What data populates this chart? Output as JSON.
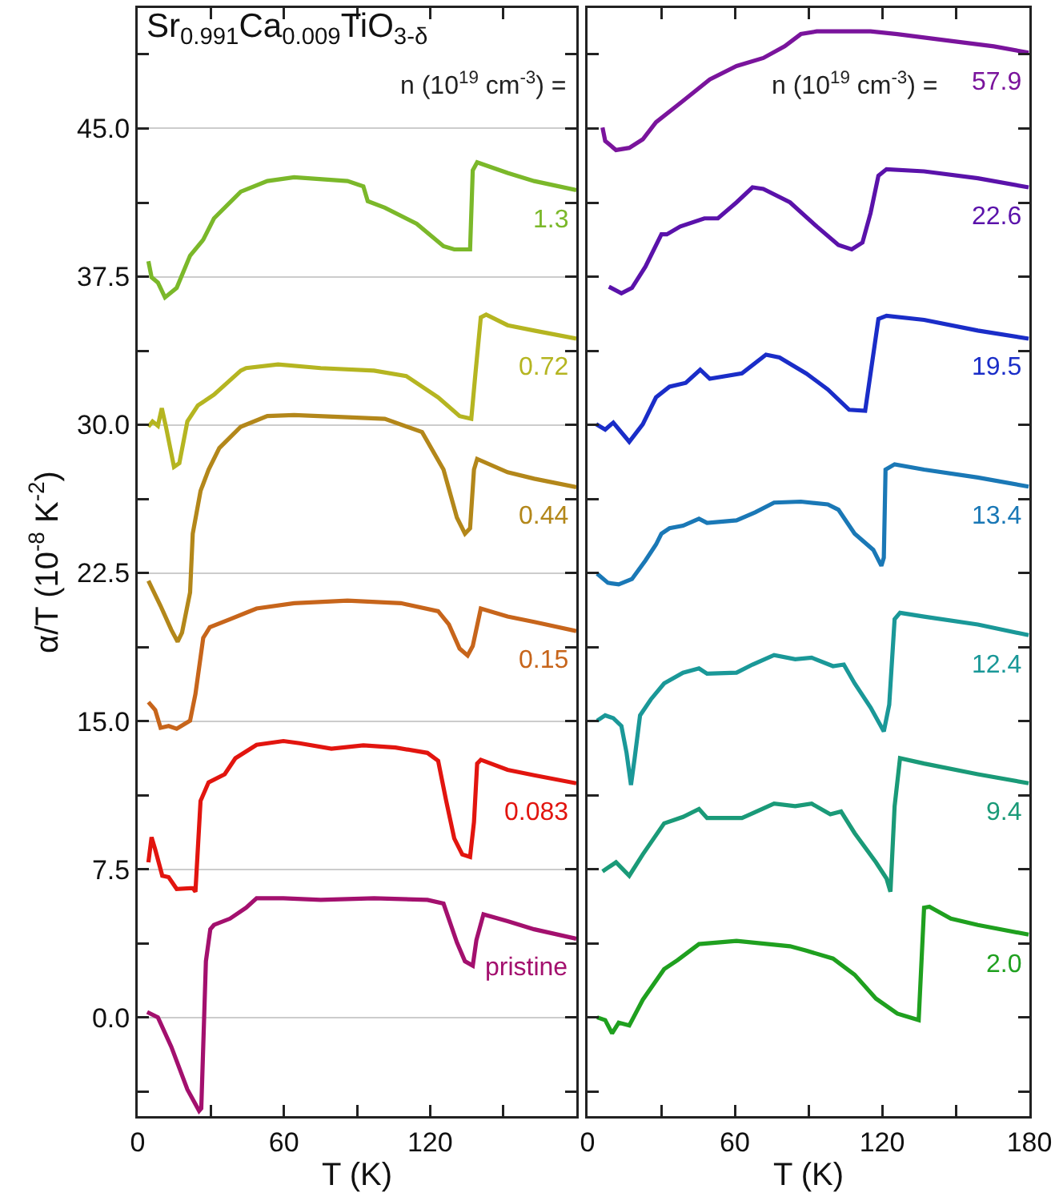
{
  "chart_data": [
    {
      "type": "line",
      "title": "Sr$_{0.991}$Ca$_{0.009}$TiO$_{3-δ}$",
      "xlabel": "T (K)",
      "ylabel": "α/T (10$^{-8}$ K$^{-2}$)",
      "annotations": [
        "n (10$^{19}$ cm$^{-3}$) ="
      ],
      "xlim": [
        0,
        180
      ],
      "ylim": [
        -5,
        51.1
      ],
      "xticks": [
        0,
        {
          "value": 30,
          "label": null
        },
        60,
        {
          "value": 90,
          "label": null
        },
        120,
        {
          "value": 150,
          "label": null
        },
        {
          "value": 180,
          "label": null
        }
      ],
      "yticks": [
        {
          "value": -3.75,
          "label": null
        },
        {
          "value": 0,
          "label": "0.0"
        },
        {
          "value": 3.75,
          "label": null
        },
        {
          "value": 7.5,
          "label": "7.5"
        },
        {
          "value": 11.25,
          "label": null
        },
        {
          "value": 15,
          "label": "15.0"
        },
        {
          "value": 18.75,
          "label": null
        },
        {
          "value": 22.5,
          "label": "22.5"
        },
        {
          "value": 26.25,
          "label": null
        },
        {
          "value": 30,
          "label": "30.0"
        },
        {
          "value": 33.75,
          "label": null
        },
        {
          "value": 37.5,
          "label": "37.5"
        },
        {
          "value": 41.25,
          "label": null
        },
        {
          "value": 45,
          "label": "45.0"
        },
        {
          "value": 48.75,
          "label": null
        }
      ],
      "grid": "y",
      "series": [
        {
          "name": "pristine",
          "color": "#a3106e",
          "x": [
            3.9,
            8.3,
            13.8,
            20.4,
            25.2,
            26.1,
            28,
            29.8,
            31.3,
            37.9,
            44.5,
            48.8,
            59.8,
            75.1,
            97,
            118.9,
            125.5,
            131,
            134.3,
            137.5,
            139,
            141.9,
            151.8,
            162.7,
            180
          ],
          "values": [
            0.27,
            0,
            -1.49,
            -3.65,
            -4.73,
            -4.6,
            2.84,
            4.46,
            4.68,
            5.0,
            5.55,
            6.03,
            6.03,
            5.95,
            6.03,
            5.95,
            5.76,
            3.79,
            2.84,
            2.62,
            3.92,
            5.22,
            4.87,
            4.46,
            3.98
          ]
        },
        {
          "name": "0.083",
          "color": "#e2150f",
          "x": [
            4.4,
            5.7,
            7.2,
            10.1,
            12.7,
            16,
            22.6,
            23.7,
            25.8,
            29.1,
            35.7,
            40.1,
            48.8,
            59.8,
            66.4,
            79.5,
            92.6,
            105.8,
            118.9,
            123.3,
            126.6,
            129.9,
            133.2,
            136.4,
            138,
            139.3,
            140.8,
            151.8,
            162.7,
            180
          ],
          "values": [
            7.85,
            9.12,
            8.5,
            7.17,
            7.1,
            6.5,
            6.55,
            6.36,
            10.96,
            11.9,
            12.31,
            13.12,
            13.8,
            13.99,
            13.88,
            13.6,
            13.77,
            13.66,
            13.39,
            12.99,
            10.96,
            9.06,
            8.25,
            8.12,
            9.88,
            12.85,
            13.04,
            12.53,
            12.26,
            11.85
          ]
        },
        {
          "name": "0.15",
          "color": "#c7651b",
          "x": [
            4.4,
            7.2,
            9.4,
            12.7,
            16,
            21.5,
            23.7,
            26.9,
            29.6,
            37.9,
            48.8,
            64.2,
            86.1,
            108,
            123.3,
            127.7,
            132.1,
            135.4,
            137.5,
            140.8,
            151.8,
            162.7,
            180
          ],
          "values": [
            15.96,
            15.56,
            14.66,
            14.75,
            14.61,
            15.02,
            16.37,
            19.21,
            19.75,
            20.16,
            20.7,
            20.97,
            21.1,
            20.97,
            20.56,
            19.89,
            18.67,
            18.32,
            18.8,
            20.7,
            20.29,
            20.02,
            19.56
          ]
        },
        {
          "name": "0.44",
          "color": "#b3871a",
          "x": [
            4.4,
            9.4,
            13.8,
            16.4,
            18.2,
            21.5,
            22.6,
            25.8,
            29.1,
            33.5,
            42.3,
            53.2,
            64.2,
            86.1,
            101.4,
            116.7,
            125.5,
            131,
            134.3,
            136.4,
            138,
            139.3,
            151.8,
            162.7,
            180
          ],
          "values": [
            22.1,
            20.83,
            19.62,
            19.02,
            19.48,
            21.51,
            24.49,
            26.65,
            27.73,
            28.82,
            29.9,
            30.44,
            30.49,
            30.38,
            30.3,
            29.63,
            27.73,
            25.3,
            24.49,
            24.76,
            27.73,
            28.27,
            27.6,
            27.27,
            26.84
          ]
        },
        {
          "name": "0.72",
          "color": "#b5b521",
          "x": [
            4.4,
            6.1,
            8.3,
            9.9,
            11.6,
            14.9,
            17.1,
            20.4,
            24.7,
            31.3,
            42.3,
            44.5,
            57.6,
            75.1,
            97,
            110.2,
            123.3,
            132.1,
            136.9,
            138.6,
            140.8,
            143,
            151.8,
            162.7,
            180
          ],
          "values": [
            29.9,
            30.17,
            29.95,
            30.84,
            29.9,
            27.87,
            28.06,
            30.17,
            30.98,
            31.52,
            32.74,
            32.87,
            33.06,
            32.87,
            32.74,
            32.47,
            31.39,
            30.44,
            30.3,
            32.6,
            35.44,
            35.58,
            35.04,
            34.77,
            34.36
          ]
        },
        {
          "name": "1.3",
          "color": "#7bb82a",
          "x": [
            4.4,
            5.7,
            8.3,
            11.2,
            16,
            21.5,
            26.9,
            31.3,
            42.3,
            53.2,
            64.2,
            86.1,
            92.6,
            94.4,
            101.4,
            114.5,
            121.1,
            125.5,
            129.9,
            136.4,
            137.5,
            139.3,
            151.8,
            162.7,
            180
          ],
          "values": [
            38.28,
            37.47,
            37.2,
            36.45,
            36.93,
            38.56,
            39.37,
            40.45,
            41.8,
            42.34,
            42.53,
            42.34,
            42.07,
            41.32,
            40.99,
            40.18,
            39.5,
            39.04,
            38.88,
            38.88,
            42.88,
            43.29,
            42.75,
            42.34,
            41.88
          ]
        }
      ]
    },
    {
      "type": "line",
      "xlabel": "T (K)",
      "annotations": [
        "n (10$^{19}$ cm$^{-3}$) ="
      ],
      "xlim": [
        0,
        180
      ],
      "ylim": [
        -5,
        51.1
      ],
      "tick_labels": "x",
      "xticks": [
        0,
        {
          "value": 30,
          "label": null
        },
        60,
        {
          "value": 90,
          "label": null
        },
        120,
        {
          "value": 150,
          "label": null
        },
        180
      ],
      "yticks": [
        {
          "value": -3.75,
          "label": null
        },
        {
          "value": 0,
          "label": null
        },
        {
          "value": 3.75,
          "label": null
        },
        {
          "value": 7.5,
          "label": null
        },
        {
          "value": 11.25,
          "label": null
        },
        {
          "value": 15,
          "label": null
        },
        {
          "value": 18.75,
          "label": null
        },
        {
          "value": 22.5,
          "label": null
        },
        {
          "value": 26.25,
          "label": null
        },
        {
          "value": 30,
          "label": null
        },
        {
          "value": 33.75,
          "label": null
        },
        {
          "value": 37.5,
          "label": null
        },
        {
          "value": 41.25,
          "label": null
        },
        {
          "value": 45,
          "label": null
        },
        {
          "value": 48.75,
          "label": null
        }
      ],
      "grid": "y",
      "series": [
        {
          "name": "57.9",
          "color": "#7a149c",
          "x": [
            6.1,
            7.2,
            11.6,
            17,
            22.5,
            27.9,
            38.9,
            49.8,
            60.7,
            71.6,
            80.3,
            86.9,
            93.4,
            115.3,
            126.2,
            148,
            165.5,
            179.7
          ],
          "values": [
            45.05,
            44.37,
            43.91,
            44.02,
            44.45,
            45.32,
            46.4,
            47.48,
            48.16,
            48.57,
            49.16,
            49.78,
            49.92,
            49.92,
            49.78,
            49.43,
            49.16,
            48.84
          ]
        },
        {
          "name": "22.6",
          "color": "#5a12aa",
          "x": [
            8.7,
            13.8,
            18.1,
            23.6,
            30.1,
            32.3,
            37.8,
            47.6,
            53.1,
            60.7,
            67.2,
            71.6,
            82.5,
            93.4,
            102.2,
            107.6,
            112,
            115.3,
            118.5,
            121.8,
            137.1,
            159,
            179.7
          ],
          "values": [
            36.99,
            36.66,
            36.93,
            38.01,
            39.64,
            39.64,
            40.04,
            40.45,
            40.45,
            41.26,
            42.02,
            41.94,
            41.26,
            40.04,
            39.1,
            38.88,
            39.23,
            40.72,
            42.61,
            42.94,
            42.83,
            42.48,
            42.02
          ]
        },
        {
          "name": "19.5",
          "color": "#1a2dc8",
          "x": [
            3.5,
            7.2,
            10.5,
            17,
            22.5,
            27.9,
            33.4,
            40,
            45.9,
            49.8,
            62.9,
            72.7,
            78.2,
            89.1,
            97.9,
            106.6,
            113.1,
            115.3,
            118.5,
            121.8,
            137.1,
            159,
            179.7
          ],
          "values": [
            30.03,
            29.76,
            30.11,
            29.14,
            30.03,
            31.39,
            31.93,
            32.12,
            32.79,
            32.33,
            32.6,
            33.55,
            33.41,
            32.6,
            31.79,
            30.76,
            30.71,
            32.6,
            35.36,
            35.52,
            35.31,
            34.77,
            34.36
          ]
        },
        {
          "name": "13.4",
          "color": "#1a78b6",
          "x": [
            3.9,
            8.3,
            12.7,
            18.1,
            23.6,
            27.9,
            30.1,
            33.4,
            38.9,
            45.4,
            48.7,
            60.7,
            68.3,
            76,
            86.9,
            97.9,
            102.2,
            108.8,
            116.4,
            119.7,
            120.7,
            121.4,
            125.1,
            137.1,
            159,
            179.7
          ],
          "values": [
            22.46,
            22.0,
            21.92,
            22.19,
            23.13,
            23.94,
            24.49,
            24.76,
            24.89,
            25.24,
            25.03,
            25.16,
            25.57,
            26.06,
            26.11,
            25.97,
            25.7,
            24.49,
            23.67,
            22.86,
            23.27,
            27.73,
            28.0,
            27.73,
            27.33,
            26.87
          ]
        },
        {
          "name": "12.4",
          "color": "#1a9898",
          "x": [
            3.9,
            7.2,
            10.5,
            13.8,
            15.9,
            17.7,
            19.2,
            21.4,
            25.8,
            31.2,
            38.9,
            45.4,
            48.7,
            60.7,
            67.2,
            76,
            84.6,
            91.3,
            100,
            104.4,
            108.8,
            115.3,
            120.7,
            122.9,
            125.1,
            127.3,
            137.1,
            159,
            179.7
          ],
          "values": [
            15.02,
            15.29,
            15.15,
            14.75,
            13.39,
            11.77,
            13.12,
            15.29,
            16.1,
            16.91,
            17.45,
            17.67,
            17.4,
            17.45,
            17.86,
            18.34,
            18.13,
            18.21,
            17.78,
            17.86,
            16.91,
            15.69,
            14.48,
            15.83,
            20.16,
            20.48,
            20.29,
            19.89,
            19.35
          ]
        },
        {
          "name": "9.4",
          "color": "#1a9a78",
          "x": [
            6.1,
            11.6,
            17,
            22.5,
            31.2,
            38.9,
            45.4,
            48.7,
            62.9,
            76,
            84.6,
            91.3,
            98.9,
            103.3,
            108.8,
            117.5,
            121.8,
            123.4,
            125.1,
            127.3,
            137.1,
            159,
            179.7
          ],
          "values": [
            7.39,
            7.85,
            7.17,
            8.25,
            9.82,
            10.15,
            10.55,
            10.09,
            10.09,
            10.82,
            10.69,
            10.82,
            10.28,
            10.42,
            9.33,
            7.85,
            7.03,
            6.36,
            10.69,
            13.12,
            12.85,
            12.31,
            11.85
          ]
        },
        {
          "name": "2.0",
          "color": "#1fa01f",
          "x": [
            3.9,
            7.2,
            10,
            12.7,
            17,
            22.5,
            31.2,
            36.7,
            45.4,
            60.7,
            82.5,
            89.1,
            100,
            108.8,
            117.5,
            126.2,
            134.9,
            137.1,
            139.3,
            148,
            159,
            179.7
          ],
          "values": [
            0,
            -0.14,
            -0.81,
            -0.27,
            -0.41,
            0.89,
            2.44,
            2.9,
            3.71,
            3.87,
            3.6,
            3.38,
            2.98,
            2.16,
            0.95,
            0.19,
            -0.14,
            5.55,
            5.6,
            5.0,
            4.68,
            4.19
          ]
        }
      ]
    }
  ]
}
